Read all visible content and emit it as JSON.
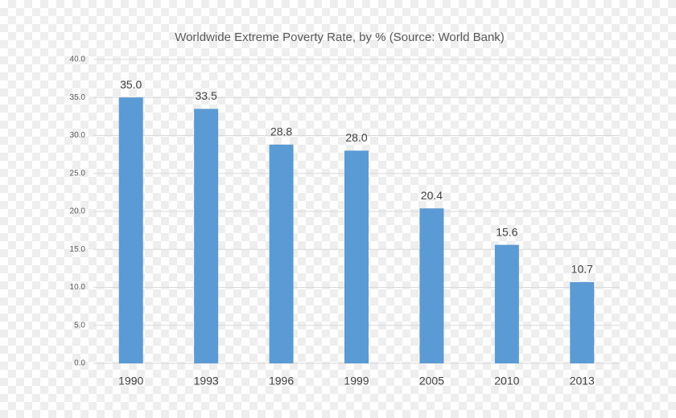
{
  "chart_data": {
    "type": "bar",
    "title": "Worldwide Extreme Poverty Rate, by % (Source: World Bank)",
    "categories": [
      "1990",
      "1993",
      "1996",
      "1999",
      "2005",
      "2010",
      "2013"
    ],
    "values": [
      35.0,
      33.5,
      28.8,
      28.0,
      20.4,
      15.6,
      10.7
    ],
    "value_labels": [
      "35.0",
      "33.5",
      "28.8",
      "28.0",
      "20.4",
      "15.6",
      "10.7"
    ],
    "color": "#5b9bd5",
    "ylim": [
      0,
      40
    ],
    "yticks": [
      {
        "value": 0,
        "label": "0.0"
      },
      {
        "value": 5,
        "label": "5.0"
      },
      {
        "value": 10,
        "label": "10.0"
      },
      {
        "value": 15,
        "label": "15.0"
      },
      {
        "value": 20,
        "label": "20.0"
      },
      {
        "value": 25,
        "label": "25.0"
      },
      {
        "value": 30,
        "label": "30.0"
      },
      {
        "value": 35,
        "label": "35.0"
      },
      {
        "value": 40,
        "label": "40.0"
      }
    ],
    "grid": true
  }
}
